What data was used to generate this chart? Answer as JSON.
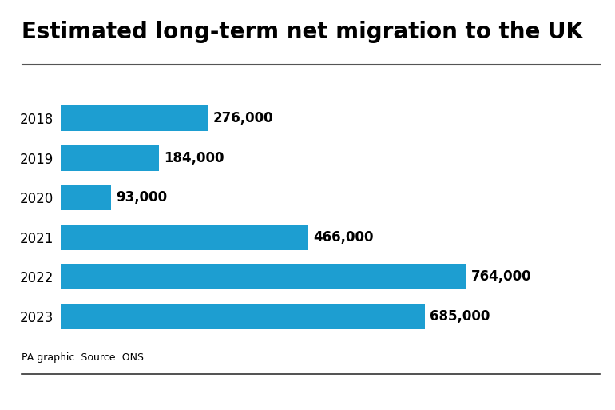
{
  "title": "Estimated long-term net migration to the UK",
  "categories": [
    "2018",
    "2019",
    "2020",
    "2021",
    "2022",
    "2023"
  ],
  "values": [
    276000,
    184000,
    93000,
    466000,
    764000,
    685000
  ],
  "labels": [
    "276,000",
    "184,000",
    "93,000",
    "466,000",
    "764,000",
    "685,000"
  ],
  "bar_color": "#1d9ed1",
  "background_color": "#ffffff",
  "title_fontsize": 20,
  "label_fontsize": 12,
  "year_fontsize": 12,
  "source_text": "PA graphic. Source: ONS",
  "source_fontsize": 9,
  "xlim": [
    0,
    870000
  ],
  "bar_height": 0.65
}
